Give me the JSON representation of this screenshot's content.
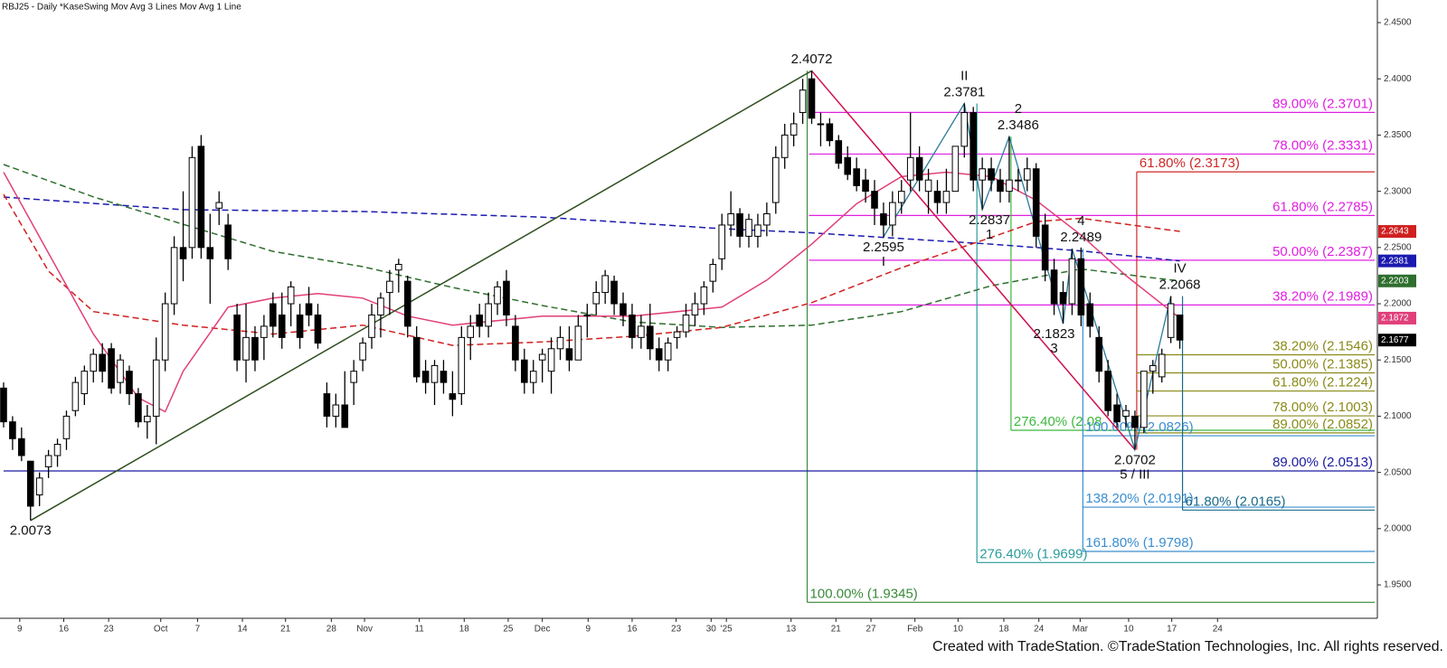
{
  "chart_data": {
    "type": "candlestick",
    "title": "RBJ25 - Daily  *KaseSwing  Mov Avg 3 Lines  Mov Avg 1 Line",
    "footer": "Created with TradeStation. ©TradeStation Technologies, Inc. All rights reserved.",
    "xlim": [
      -0.4,
      152.9
    ],
    "ylim": [
      1.9211,
      2.4701
    ],
    "yticks": [
      {
        "value": 1.95,
        "label": "1.9500"
      },
      {
        "value": 2.0,
        "label": "2.0000"
      },
      {
        "value": 2.05,
        "label": "2.0500"
      },
      {
        "value": 2.1,
        "label": "2.1000"
      },
      {
        "value": 2.15,
        "label": "2.1500"
      },
      {
        "value": 2.2,
        "label": "2.2000"
      },
      {
        "value": 2.25,
        "label": "2.2500"
      },
      {
        "value": 2.3,
        "label": "2.3000"
      },
      {
        "value": 2.35,
        "label": "2.3500"
      },
      {
        "value": 2.4,
        "label": "2.4000"
      },
      {
        "value": 2.45,
        "label": "2.4500"
      }
    ],
    "xticks": [
      {
        "value": 1.8,
        "label": "9"
      },
      {
        "value": 6.7,
        "label": "16"
      },
      {
        "value": 11.7,
        "label": "23"
      },
      {
        "value": 17.5,
        "label": "Oct"
      },
      {
        "value": 21.6,
        "label": "7"
      },
      {
        "value": 26.6,
        "label": "14"
      },
      {
        "value": 31.4,
        "label": "21"
      },
      {
        "value": 36.5,
        "label": "28"
      },
      {
        "value": 40.2,
        "label": "Nov"
      },
      {
        "value": 46.3,
        "label": "11"
      },
      {
        "value": 51.3,
        "label": "18"
      },
      {
        "value": 56.2,
        "label": "25"
      },
      {
        "value": 60.0,
        "label": "Dec"
      },
      {
        "value": 65.1,
        "label": "9"
      },
      {
        "value": 70.0,
        "label": "16"
      },
      {
        "value": 74.9,
        "label": "23"
      },
      {
        "value": 78.8,
        "label": "30"
      },
      {
        "value": 80.5,
        "label": "'25"
      },
      {
        "value": 87.7,
        "label": "13"
      },
      {
        "value": 92.7,
        "label": "21"
      },
      {
        "value": 96.6,
        "label": "27"
      },
      {
        "value": 101.5,
        "label": "Feb"
      },
      {
        "value": 106.3,
        "label": "10"
      },
      {
        "value": 111.4,
        "label": "18"
      },
      {
        "value": 115.3,
        "label": "24"
      },
      {
        "value": 119.9,
        "label": "Mar"
      },
      {
        "value": 125.3,
        "label": "10"
      },
      {
        "value": 130.1,
        "label": "17"
      },
      {
        "value": 135.2,
        "label": "24"
      }
    ],
    "ohlc": [
      [
        2.125,
        2.13,
        2.09,
        2.095
      ],
      [
        2.095,
        2.1,
        2.07,
        2.08
      ],
      [
        2.08,
        2.09,
        2.06,
        2.065
      ],
      [
        2.06,
        2.06,
        2.0073,
        2.02
      ],
      [
        2.03,
        2.05,
        2.02,
        2.045
      ],
      [
        2.055,
        2.07,
        2.045,
        2.065
      ],
      [
        2.065,
        2.08,
        2.055,
        2.075
      ],
      [
        2.08,
        2.105,
        2.07,
        2.1
      ],
      [
        2.105,
        2.135,
        2.1,
        2.13
      ],
      [
        2.12,
        2.145,
        2.11,
        2.14
      ],
      [
        2.14,
        2.16,
        2.13,
        2.155
      ],
      [
        2.155,
        2.165,
        2.13,
        2.14
      ],
      [
        2.16,
        2.165,
        2.12,
        2.125
      ],
      [
        2.13,
        2.155,
        2.12,
        2.15
      ],
      [
        2.14,
        2.145,
        2.11,
        2.12
      ],
      [
        2.12,
        2.125,
        2.09,
        2.095
      ],
      [
        2.095,
        2.11,
        2.08,
        2.1
      ],
      [
        2.1,
        2.17,
        2.075,
        2.15
      ],
      [
        2.15,
        2.21,
        2.14,
        2.2
      ],
      [
        2.2,
        2.26,
        2.19,
        2.25
      ],
      [
        2.25,
        2.3,
        2.22,
        2.24
      ],
      [
        2.25,
        2.34,
        2.24,
        2.33
      ],
      [
        2.34,
        2.35,
        2.24,
        2.25
      ],
      [
        2.25,
        2.28,
        2.2,
        2.24
      ],
      [
        2.285,
        2.3,
        2.27,
        2.29
      ],
      [
        2.27,
        2.28,
        2.23,
        2.24
      ],
      [
        2.19,
        2.2,
        2.14,
        2.15
      ],
      [
        2.15,
        2.2,
        2.13,
        2.17
      ],
      [
        2.17,
        2.18,
        2.14,
        2.15
      ],
      [
        2.17,
        2.19,
        2.15,
        2.18
      ],
      [
        2.2,
        2.21,
        2.17,
        2.18
      ],
      [
        2.19,
        2.21,
        2.16,
        2.17
      ],
      [
        2.2,
        2.22,
        2.18,
        2.215
      ],
      [
        2.19,
        2.2,
        2.16,
        2.17
      ],
      [
        2.2,
        2.215,
        2.18,
        2.19
      ],
      [
        2.19,
        2.2,
        2.16,
        2.165
      ],
      [
        2.12,
        2.13,
        2.09,
        2.1
      ],
      [
        2.1,
        2.12,
        2.09,
        2.11
      ],
      [
        2.11,
        2.14,
        2.09,
        2.09
      ],
      [
        2.13,
        2.15,
        2.11,
        2.14
      ],
      [
        2.15,
        2.17,
        2.14,
        2.165
      ],
      [
        2.17,
        2.2,
        2.16,
        2.19
      ],
      [
        2.19,
        2.21,
        2.17,
        2.205
      ],
      [
        2.21,
        2.23,
        2.19,
        2.22
      ],
      [
        2.23,
        2.24,
        2.21,
        2.235
      ],
      [
        2.22,
        2.225,
        2.17,
        2.18
      ],
      [
        2.17,
        2.18,
        2.13,
        2.135
      ],
      [
        2.14,
        2.15,
        2.12,
        2.13
      ],
      [
        2.13,
        2.15,
        2.11,
        2.145
      ],
      [
        2.14,
        2.15,
        2.12,
        2.13
      ],
      [
        2.12,
        2.14,
        2.1,
        2.115
      ],
      [
        2.12,
        2.18,
        2.11,
        2.17
      ],
      [
        2.17,
        2.19,
        2.15,
        2.18
      ],
      [
        2.19,
        2.2,
        2.17,
        2.18
      ],
      [
        2.18,
        2.21,
        2.17,
        2.2
      ],
      [
        2.2,
        2.22,
        2.19,
        2.215
      ],
      [
        2.22,
        2.23,
        2.18,
        2.19
      ],
      [
        2.18,
        2.19,
        2.14,
        2.15
      ],
      [
        2.15,
        2.16,
        2.12,
        2.13
      ],
      [
        2.13,
        2.15,
        2.12,
        2.14
      ],
      [
        2.15,
        2.16,
        2.13,
        2.155
      ],
      [
        2.14,
        2.17,
        2.12,
        2.16
      ],
      [
        2.16,
        2.18,
        2.15,
        2.17
      ],
      [
        2.16,
        2.18,
        2.14,
        2.15
      ],
      [
        2.15,
        2.19,
        2.15,
        2.18
      ],
      [
        2.19,
        2.2,
        2.17,
        2.19
      ],
      [
        2.2,
        2.22,
        2.19,
        2.21
      ],
      [
        2.21,
        2.23,
        2.2,
        2.225
      ],
      [
        2.22,
        2.225,
        2.19,
        2.2
      ],
      [
        2.2,
        2.21,
        2.18,
        2.19
      ],
      [
        2.19,
        2.2,
        2.16,
        2.17
      ],
      [
        2.17,
        2.19,
        2.16,
        2.18
      ],
      [
        2.18,
        2.2,
        2.15,
        2.16
      ],
      [
        2.16,
        2.17,
        2.14,
        2.15
      ],
      [
        2.15,
        2.17,
        2.14,
        2.165
      ],
      [
        2.17,
        2.18,
        2.16,
        2.175
      ],
      [
        2.175,
        2.2,
        2.17,
        2.19
      ],
      [
        2.19,
        2.21,
        2.18,
        2.2
      ],
      [
        2.2,
        2.22,
        2.19,
        2.215
      ],
      [
        2.22,
        2.24,
        2.21,
        2.235
      ],
      [
        2.24,
        2.28,
        2.23,
        2.27
      ],
      [
        2.27,
        2.3,
        2.26,
        2.28
      ],
      [
        2.28,
        2.285,
        2.25,
        2.26
      ],
      [
        2.26,
        2.28,
        2.25,
        2.275
      ],
      [
        2.26,
        2.28,
        2.25,
        2.27
      ],
      [
        2.27,
        2.29,
        2.26,
        2.28
      ],
      [
        2.29,
        2.34,
        2.28,
        2.33
      ],
      [
        2.33,
        2.36,
        2.32,
        2.35
      ],
      [
        2.35,
        2.37,
        2.34,
        2.36
      ],
      [
        2.37,
        2.4,
        2.36,
        2.39
      ],
      [
        2.4,
        2.4072,
        2.36,
        2.365
      ],
      [
        2.36,
        2.37,
        2.34,
        2.36
      ],
      [
        2.36,
        2.365,
        2.34,
        2.345
      ],
      [
        2.345,
        2.35,
        2.32,
        2.325
      ],
      [
        2.33,
        2.34,
        2.31,
        2.315
      ],
      [
        2.32,
        2.33,
        2.3,
        2.305
      ],
      [
        2.31,
        2.32,
        2.29,
        2.3
      ],
      [
        2.3,
        2.31,
        2.27,
        2.285
      ],
      [
        2.28,
        2.29,
        2.2595,
        2.27
      ],
      [
        2.27,
        2.3,
        2.26,
        2.29
      ],
      [
        2.29,
        2.31,
        2.28,
        2.3
      ],
      [
        2.31,
        2.37,
        2.3,
        2.33
      ],
      [
        2.33,
        2.34,
        2.3,
        2.31
      ],
      [
        2.3,
        2.32,
        2.28,
        2.31
      ],
      [
        2.3,
        2.31,
        2.28,
        2.29
      ],
      [
        2.29,
        2.32,
        2.28,
        2.3
      ],
      [
        2.3,
        2.34,
        2.3,
        2.34
      ],
      [
        2.34,
        2.3781,
        2.33,
        2.37
      ],
      [
        2.37,
        2.375,
        2.3,
        2.31
      ],
      [
        2.31,
        2.33,
        2.2837,
        2.32
      ],
      [
        2.32,
        2.33,
        2.3,
        2.31
      ],
      [
        2.31,
        2.32,
        2.29,
        2.3
      ],
      [
        2.3,
        2.3486,
        2.29,
        2.31
      ],
      [
        2.31,
        2.32,
        2.3,
        2.31
      ],
      [
        2.31,
        2.33,
        2.3,
        2.32
      ],
      [
        2.32,
        2.325,
        2.25,
        2.26
      ],
      [
        2.27,
        2.28,
        2.22,
        2.23
      ],
      [
        2.23,
        2.24,
        2.19,
        2.2
      ],
      [
        2.21,
        2.22,
        2.1823,
        2.2
      ],
      [
        2.2,
        2.2489,
        2.19,
        2.24
      ],
      [
        2.24,
        2.25,
        2.18,
        2.19
      ],
      [
        2.2,
        2.21,
        2.17,
        2.18
      ],
      [
        2.17,
        2.18,
        2.13,
        2.14
      ],
      [
        2.14,
        2.15,
        2.1,
        2.105
      ],
      [
        2.11,
        2.12,
        2.09,
        2.095
      ],
      [
        2.1,
        2.11,
        2.09,
        2.105
      ],
      [
        2.1,
        2.105,
        2.0702,
        2.09
      ],
      [
        2.09,
        2.14,
        2.085,
        2.14
      ],
      [
        2.14,
        2.15,
        2.12,
        2.145
      ],
      [
        2.135,
        2.16,
        2.13,
        2.155
      ],
      [
        2.17,
        2.2068,
        2.165,
        2.2
      ],
      [
        2.19,
        2.19,
        2.16,
        2.1677
      ]
    ],
    "series": [
      {
        "color": "#1a1ab0",
        "dashed": true,
        "x": [
          0,
          20,
          40,
          60,
          80,
          90,
          100,
          110,
          120,
          131
        ],
        "values": [
          2.2949,
          2.2836,
          2.282,
          2.277,
          2.2667,
          2.263,
          2.258,
          2.253,
          2.247,
          2.2381
        ]
      },
      {
        "color": "#2e6e2e",
        "dashed": true,
        "x": [
          0,
          10,
          20,
          30,
          40,
          50,
          60,
          70,
          80,
          90,
          100,
          110,
          120,
          127,
          131
        ],
        "values": [
          2.3238,
          2.295,
          2.2707,
          2.2466,
          2.233,
          2.2145,
          2.1984,
          2.1839,
          2.179,
          2.181,
          2.193,
          2.216,
          2.231,
          2.224,
          2.2203
        ]
      },
      {
        "color": "#d02020",
        "dashed": true,
        "x": [
          0,
          5,
          10,
          20,
          30,
          40,
          50,
          60,
          70,
          80,
          90,
          100,
          110,
          115,
          120,
          131
        ],
        "values": [
          2.2973,
          2.229,
          2.193,
          2.181,
          2.173,
          2.181,
          2.163,
          2.166,
          2.171,
          2.179,
          2.201,
          2.232,
          2.259,
          2.273,
          2.276,
          2.2643
        ]
      },
      {
        "color": "#e0407a",
        "dashed": false,
        "x": [
          0,
          10,
          15,
          18,
          20,
          25,
          30,
          35,
          40,
          45,
          50,
          60,
          70,
          80,
          85,
          90,
          95,
          100,
          105,
          110,
          115,
          120,
          125,
          131
        ],
        "values": [
          2.317,
          2.173,
          2.1164,
          2.104,
          2.14,
          2.197,
          2.205,
          2.209,
          2.205,
          2.189,
          2.181,
          2.189,
          2.189,
          2.197,
          2.221,
          2.253,
          2.289,
          2.313,
          2.317,
          2.313,
          2.292,
          2.261,
          2.225,
          2.1872
        ]
      }
    ],
    "trendlines": [
      {
        "color": "#2f4f1f",
        "points": [
          [
            3,
            2.0073
          ],
          [
            90,
            2.4072
          ]
        ]
      },
      {
        "color": "#d0104a",
        "points": [
          [
            90,
            2.4072
          ],
          [
            126,
            2.0702
          ]
        ]
      }
    ],
    "wave": {
      "color": "#2a7a9a",
      "points": [
        [
          98,
          2.2595
        ],
        [
          107,
          2.3781
        ],
        [
          109,
          2.2837
        ],
        [
          112,
          2.3486
        ],
        [
          118,
          2.1823
        ],
        [
          119,
          2.2489
        ],
        [
          126,
          2.0702
        ],
        [
          130,
          2.2068
        ]
      ]
    },
    "swings": [
      {
        "x": 3,
        "value": 2.0073,
        "pos": "below"
      },
      {
        "x": 90,
        "value": 2.4072,
        "pos": "above"
      },
      {
        "x": 98,
        "value": 2.2595,
        "wave": "I",
        "pos": "below"
      },
      {
        "x": 107,
        "value": 2.3781,
        "wave": "II",
        "pos": "above"
      },
      {
        "x": 109.8,
        "value": 2.2837,
        "wave": "1",
        "pos": "below"
      },
      {
        "x": 113,
        "value": 2.3486,
        "wave": "2",
        "pos": "above"
      },
      {
        "x": 117,
        "value": 2.1823,
        "wave": "3",
        "pos": "below"
      },
      {
        "x": 120,
        "value": 2.2489,
        "wave": "4",
        "pos": "above"
      },
      {
        "x": 126,
        "value": 2.0702,
        "wave": "5 / III",
        "pos": "below"
      },
      {
        "x": 131,
        "value": 2.2068,
        "wave": "IV",
        "pos": "above"
      }
    ],
    "fibs": [
      {
        "color": "#e020e0",
        "from": 89.7,
        "levels": [
          {
            "value": 2.3701,
            "label": "89.00% (2.3701)"
          },
          {
            "value": 2.3331,
            "label": "78.00% (2.3331)"
          },
          {
            "value": 2.2785,
            "label": "61.80% (2.2785)"
          },
          {
            "value": 2.2387,
            "label": "50.00% (2.2387)"
          },
          {
            "value": 2.1989,
            "label": "38.20% (2.1989)"
          }
        ]
      },
      {
        "color": "#d02828",
        "from": 126.2,
        "anchor": 2.0702,
        "levels": [
          {
            "value": 2.3173,
            "label": "61.80% (2.3173)"
          }
        ]
      },
      {
        "color": "#8a8a1a",
        "from": 126.2,
        "levels": [
          {
            "value": 2.1546,
            "label": "38.20% (2.1546)"
          },
          {
            "value": 2.1385,
            "label": "50.00% (2.1385)"
          },
          {
            "value": 2.1224,
            "label": "61.80% (2.1224)"
          },
          {
            "value": 2.1003,
            "label": "78.00% (2.1003)"
          },
          {
            "value": 2.0852,
            "label": "89.00% (2.0852)"
          }
        ]
      },
      {
        "color": "#3cb83c",
        "from": 112.2,
        "anchor": 2.3486,
        "levels": [
          {
            "value": 2.0875,
            "label": "276.40% (2.08"
          }
        ]
      },
      {
        "color": "#3a8ed0",
        "from": 120.2,
        "anchor": 2.2489,
        "levels": [
          {
            "value": 2.0826,
            "label": "100.00% (2.0826)"
          },
          {
            "value": 2.0191,
            "label": "138.20% (2.0191)"
          },
          {
            "value": 1.9798,
            "label": "161.80% (1.9798)"
          }
        ]
      },
      {
        "color": "#2a9a9a",
        "from": 108.4,
        "anchor": 2.3781,
        "levels": [
          {
            "value": 1.9699,
            "label": "276.40% (1.9699)"
          }
        ]
      },
      {
        "color": "#3a8a3a",
        "from": 89.5,
        "anchor": 2.4072,
        "levels": [
          {
            "value": 1.9345,
            "label": "100.00% (1.9345)"
          }
        ]
      },
      {
        "color": "#1a1aa0",
        "from": 0,
        "levels": [
          {
            "value": 2.0513,
            "label": "89.00% (2.0513)"
          }
        ]
      },
      {
        "color": "#1a6a8a",
        "from": 131.3,
        "anchor": 2.2068,
        "levels": [
          {
            "value": 2.0165,
            "label": "61.80% (2.0165)"
          }
        ]
      }
    ]
  }
}
